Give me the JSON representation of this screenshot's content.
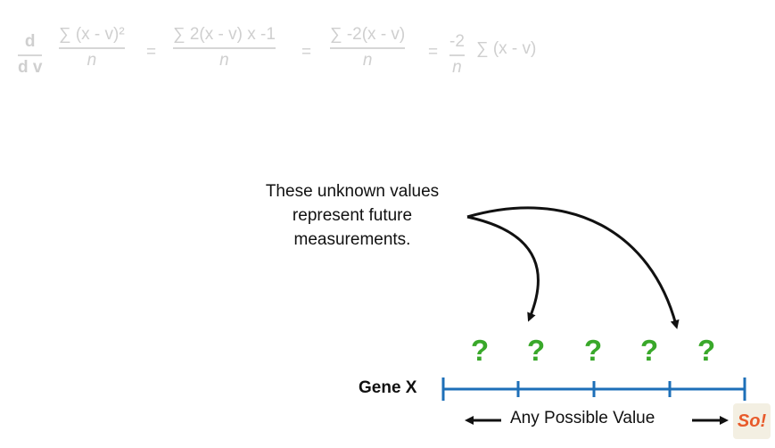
{
  "formula": {
    "d_num": "d",
    "d_den": "d v",
    "f1_num": "∑ (x - v)²",
    "f1_den": "n",
    "f2_num": "∑ 2(x - v) x -1",
    "f2_den": "n",
    "f3_num": "∑ -2(x - v)",
    "f3_den": "n",
    "f4_num": "-2",
    "f4_den": "n",
    "equals": "=",
    "tail": "∑ (x - v)"
  },
  "annotation": {
    "line1": "These unknown values",
    "line2": "represent future",
    "line3": "measurements."
  },
  "unknowns": [
    "?",
    "?",
    "?",
    "?",
    "?"
  ],
  "axis": {
    "label": "Gene X",
    "range_label": "Any Possible Value"
  },
  "colors": {
    "axis": "#1d6fb8",
    "question": "#39a82a",
    "formula": "#cfcfcf"
  },
  "logo": {
    "text": "So!"
  }
}
